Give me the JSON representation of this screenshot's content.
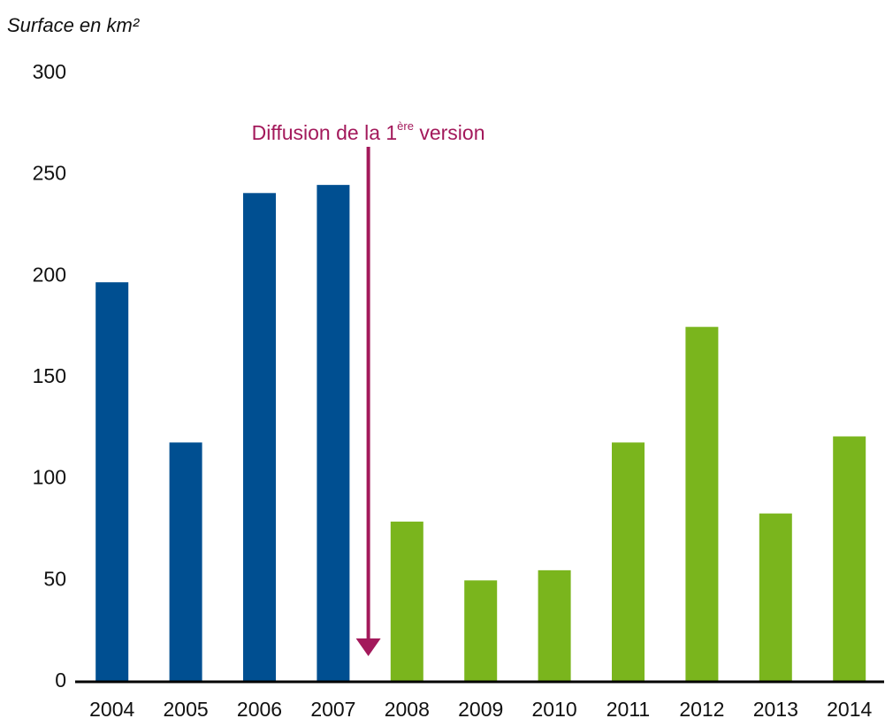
{
  "chart_data": {
    "type": "bar",
    "y_axis_label": "Surface en km²",
    "annotation": {
      "text": "Diffusion de la 1",
      "superscript": "ère",
      "suffix": " version",
      "color": "#a3195b"
    },
    "categories": [
      "2004",
      "2005",
      "2006",
      "2007",
      "2008",
      "2009",
      "2010",
      "2011",
      "2012",
      "2013",
      "2014"
    ],
    "values": [
      197,
      118,
      241,
      245,
      79,
      50,
      55,
      118,
      175,
      83,
      121
    ],
    "colors": [
      "#004f91",
      "#004f91",
      "#004f91",
      "#004f91",
      "#7ab51d",
      "#7ab51d",
      "#7ab51d",
      "#7ab51d",
      "#7ab51d",
      "#7ab51d",
      "#7ab51d"
    ],
    "ylim": [
      0,
      300
    ],
    "yticks": [
      0,
      50,
      100,
      150,
      200,
      250,
      300
    ],
    "grid": false
  }
}
